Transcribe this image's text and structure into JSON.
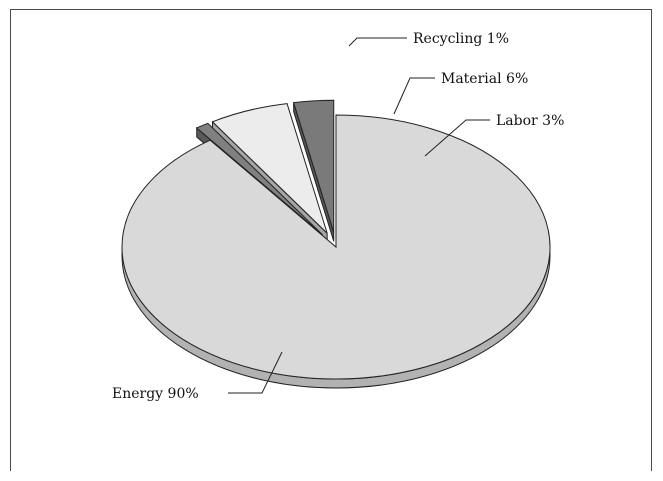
{
  "chart_data": {
    "type": "pie",
    "style": "3d-exploded",
    "title": "",
    "slices": [
      {
        "name": "Energy",
        "value": 90,
        "label": "Energy 90%",
        "color": "#d9d9d9",
        "exploded": false
      },
      {
        "name": "Recycling",
        "value": 1,
        "label": "Recycling 1%",
        "color": "#808080",
        "exploded": true
      },
      {
        "name": "Material",
        "value": 6,
        "label": "Material 6%",
        "color": "#ececec",
        "exploded": true
      },
      {
        "name": "Labor",
        "value": 3,
        "label": "Labor 3%",
        "color": "#7a7a7a",
        "exploded": true
      }
    ],
    "legend": "none",
    "grid": false
  }
}
